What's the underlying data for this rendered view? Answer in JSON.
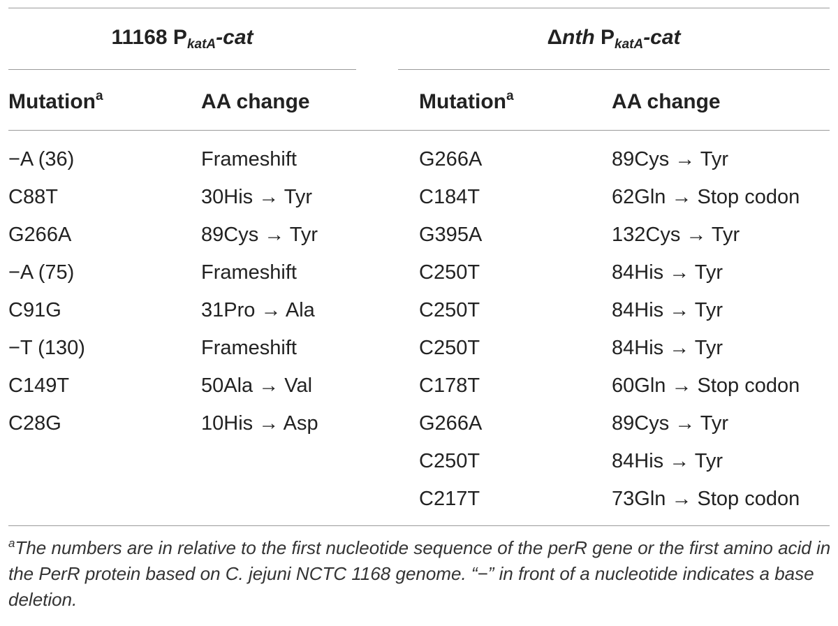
{
  "groups": [
    {
      "title_main": "11168 P",
      "title_sub": "katA",
      "title_suffix": "-cat",
      "col_headers": {
        "mutation": "Mutation",
        "mutation_sup": "a",
        "aa_change": "AA change"
      },
      "rows": [
        {
          "mutation": "−A (36)",
          "aa_change": "Frameshift"
        },
        {
          "mutation": "C88T",
          "aa_change": "30His → Tyr"
        },
        {
          "mutation": "G266A",
          "aa_change": "89Cys → Tyr"
        },
        {
          "mutation": "−A (75)",
          "aa_change": "Frameshift"
        },
        {
          "mutation": "C91G",
          "aa_change": "31Pro → Ala"
        },
        {
          "mutation": "−T (130)",
          "aa_change": "Frameshift"
        },
        {
          "mutation": "C149T",
          "aa_change": "50Ala → Val"
        },
        {
          "mutation": "C28G",
          "aa_change": "10His → Asp"
        }
      ]
    },
    {
      "title_prefix": "Δ",
      "title_italic": "nth",
      "title_main": " P",
      "title_sub": "katA",
      "title_suffix": "-cat",
      "col_headers": {
        "mutation": "Mutation",
        "mutation_sup": "a",
        "aa_change": "AA change"
      },
      "rows": [
        {
          "mutation": "G266A",
          "aa_change": "89Cys → Tyr"
        },
        {
          "mutation": "C184T",
          "aa_change": "62Gln → Stop codon"
        },
        {
          "mutation": "G395A",
          "aa_change": "132Cys → Tyr"
        },
        {
          "mutation": "C250T",
          "aa_change": "84His → Tyr"
        },
        {
          "mutation": "C250T",
          "aa_change": "84His → Tyr"
        },
        {
          "mutation": "C250T",
          "aa_change": "84His → Tyr"
        },
        {
          "mutation": "C178T",
          "aa_change": "60Gln → Stop codon"
        },
        {
          "mutation": "G266A",
          "aa_change": "89Cys → Tyr"
        },
        {
          "mutation": "C250T",
          "aa_change": "84His → Tyr"
        },
        {
          "mutation": "C217T",
          "aa_change": "73Gln → Stop codon"
        }
      ]
    }
  ],
  "footnote": {
    "marker": "a",
    "text": "The numbers are in relative to the first nucleotide sequence of the perR gene or the first amino acid in the PerR protein based on C. jejuni NCTC 1168 genome. “−” in front of a nucleotide indicates a base deletion."
  }
}
